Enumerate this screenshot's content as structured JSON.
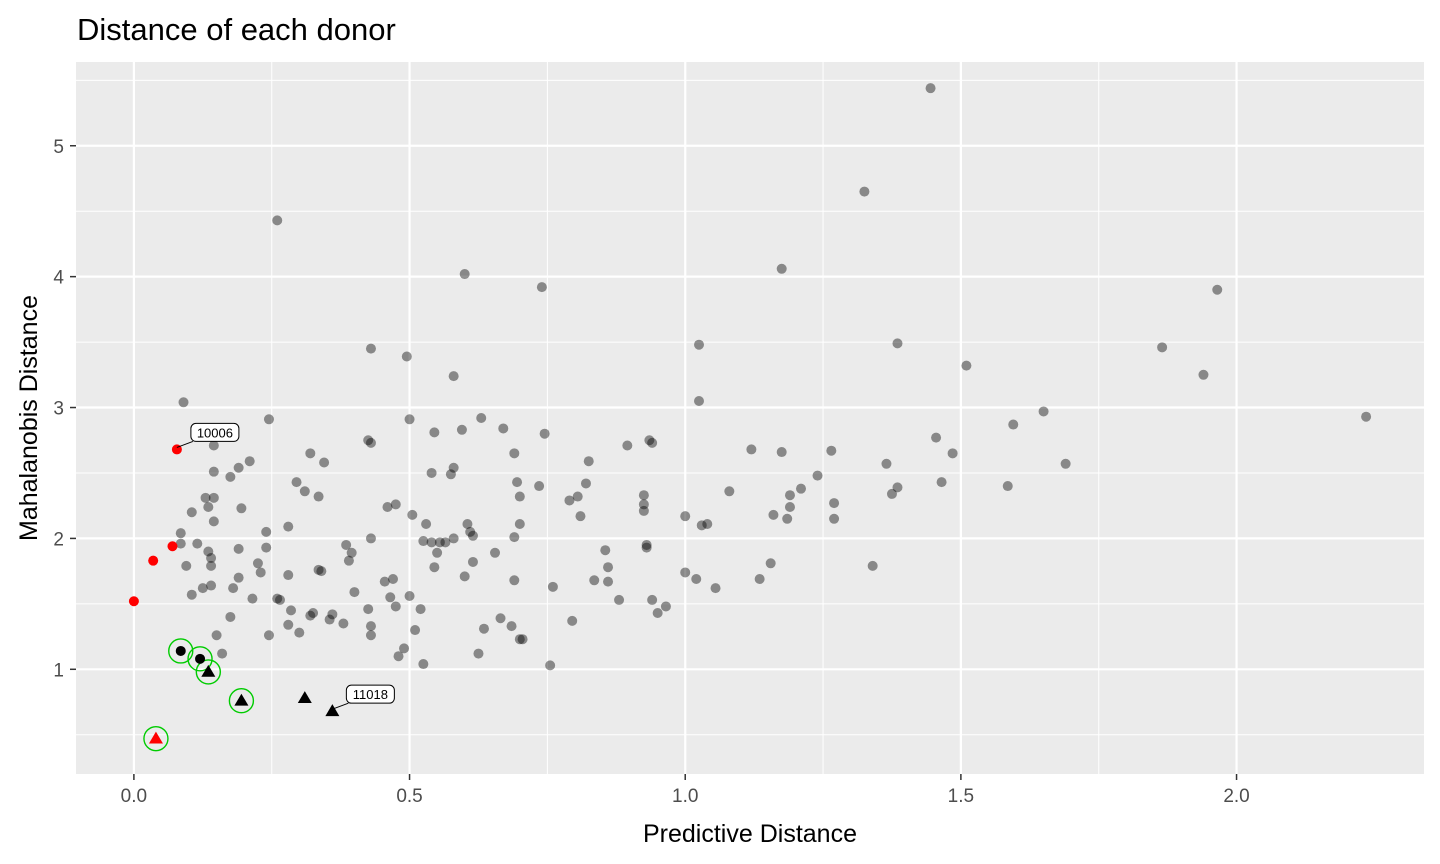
{
  "chart_data": {
    "type": "scatter",
    "title": "Distance of each donor",
    "xlabel": "Predictive Distance",
    "ylabel": "Mahalanobis Distance",
    "xlim": [
      -0.105,
      2.34
    ],
    "ylim": [
      0.2,
      5.64
    ],
    "x_ticks": [
      0.0,
      0.5,
      1.0,
      1.5,
      2.0
    ],
    "x_tick_labels": [
      "0.0",
      "0.5",
      "1.0",
      "1.5",
      "2.0"
    ],
    "y_ticks": [
      1,
      2,
      3,
      4,
      5
    ],
    "y_tick_labels": [
      "1",
      "2",
      "3",
      "4",
      "5"
    ],
    "grid": true,
    "background": "#EBEBEB",
    "colors": {
      "donor": "#7a7a7a",
      "highlight": "#FF0000",
      "selected": "#000000",
      "ring": "#00CC00"
    },
    "donors": [
      [
        1.445,
        5.44
      ],
      [
        1.325,
        4.65
      ],
      [
        0.26,
        4.43
      ],
      [
        1.175,
        4.06
      ],
      [
        0.6,
        4.02
      ],
      [
        0.74,
        3.92
      ],
      [
        1.965,
        3.9
      ],
      [
        1.385,
        3.49
      ],
      [
        1.025,
        3.48
      ],
      [
        0.43,
        3.45
      ],
      [
        1.865,
        3.46
      ],
      [
        0.495,
        3.39
      ],
      [
        1.51,
        3.32
      ],
      [
        1.94,
        3.25
      ],
      [
        0.58,
        3.24
      ],
      [
        1.025,
        3.05
      ],
      [
        0.09,
        3.04
      ],
      [
        2.235,
        2.93
      ],
      [
        0.245,
        2.91
      ],
      [
        0.5,
        2.91
      ],
      [
        0.63,
        2.92
      ],
      [
        1.65,
        2.97
      ],
      [
        1.595,
        2.87
      ],
      [
        0.67,
        2.84
      ],
      [
        0.545,
        2.81
      ],
      [
        0.595,
        2.83
      ],
      [
        0.745,
        2.8
      ],
      [
        0.425,
        2.75
      ],
      [
        0.43,
        2.73
      ],
      [
        0.935,
        2.75
      ],
      [
        0.94,
        2.73
      ],
      [
        1.455,
        2.77
      ],
      [
        0.145,
        2.71
      ],
      [
        0.895,
        2.71
      ],
      [
        1.12,
        2.68
      ],
      [
        1.485,
        2.65
      ],
      [
        1.175,
        2.66
      ],
      [
        1.265,
        2.67
      ],
      [
        0.32,
        2.65
      ],
      [
        0.69,
        2.65
      ],
      [
        0.345,
        2.58
      ],
      [
        0.21,
        2.59
      ],
      [
        0.825,
        2.59
      ],
      [
        1.365,
        2.57
      ],
      [
        1.69,
        2.57
      ],
      [
        0.58,
        2.54
      ],
      [
        0.19,
        2.54
      ],
      [
        0.145,
        2.51
      ],
      [
        0.54,
        2.5
      ],
      [
        0.575,
        2.49
      ],
      [
        1.24,
        2.48
      ],
      [
        0.175,
        2.47
      ],
      [
        0.295,
        2.43
      ],
      [
        0.695,
        2.43
      ],
      [
        0.735,
        2.4
      ],
      [
        1.465,
        2.43
      ],
      [
        0.82,
        2.42
      ],
      [
        1.385,
        2.39
      ],
      [
        1.585,
        2.4
      ],
      [
        1.21,
        2.38
      ],
      [
        0.31,
        2.36
      ],
      [
        0.145,
        2.31
      ],
      [
        1.08,
        2.36
      ],
      [
        1.375,
        2.34
      ],
      [
        0.335,
        2.32
      ],
      [
        0.7,
        2.32
      ],
      [
        0.925,
        2.33
      ],
      [
        0.805,
        2.32
      ],
      [
        1.19,
        2.33
      ],
      [
        0.13,
        2.31
      ],
      [
        0.79,
        2.29
      ],
      [
        0.925,
        2.26
      ],
      [
        1.27,
        2.27
      ],
      [
        0.135,
        2.24
      ],
      [
        0.475,
        2.26
      ],
      [
        0.46,
        2.24
      ],
      [
        1.19,
        2.24
      ],
      [
        0.195,
        2.23
      ],
      [
        0.925,
        2.21
      ],
      [
        1.16,
        2.18
      ],
      [
        0.105,
        2.2
      ],
      [
        0.505,
        2.18
      ],
      [
        0.81,
        2.17
      ],
      [
        1.0,
        2.17
      ],
      [
        1.185,
        2.15
      ],
      [
        1.27,
        2.15
      ],
      [
        0.145,
        2.13
      ],
      [
        0.53,
        2.11
      ],
      [
        0.605,
        2.11
      ],
      [
        0.7,
        2.11
      ],
      [
        1.04,
        2.11
      ],
      [
        1.03,
        2.1
      ],
      [
        0.28,
        2.09
      ],
      [
        0.61,
        2.05
      ],
      [
        0.085,
        2.04
      ],
      [
        0.24,
        2.05
      ],
      [
        0.615,
        2.02
      ],
      [
        0.69,
        2.01
      ],
      [
        0.43,
        2.0
      ],
      [
        0.58,
        2.0
      ],
      [
        0.525,
        1.98
      ],
      [
        0.54,
        1.97
      ],
      [
        0.555,
        1.97
      ],
      [
        0.565,
        1.97
      ],
      [
        0.085,
        1.96
      ],
      [
        0.115,
        1.96
      ],
      [
        0.93,
        1.95
      ],
      [
        0.385,
        1.95
      ],
      [
        0.93,
        1.93
      ],
      [
        0.24,
        1.93
      ],
      [
        0.19,
        1.92
      ],
      [
        0.855,
        1.91
      ],
      [
        0.135,
        1.9
      ],
      [
        0.395,
        1.89
      ],
      [
        0.55,
        1.89
      ],
      [
        0.655,
        1.89
      ],
      [
        0.14,
        1.85
      ],
      [
        0.39,
        1.83
      ],
      [
        0.615,
        1.82
      ],
      [
        0.225,
        1.81
      ],
      [
        1.155,
        1.81
      ],
      [
        0.095,
        1.79
      ],
      [
        0.14,
        1.79
      ],
      [
        1.34,
        1.79
      ],
      [
        0.545,
        1.78
      ],
      [
        0.86,
        1.78
      ],
      [
        0.335,
        1.76
      ],
      [
        0.34,
        1.75
      ],
      [
        1.0,
        1.74
      ],
      [
        0.23,
        1.74
      ],
      [
        0.28,
        1.72
      ],
      [
        0.6,
        1.71
      ],
      [
        0.19,
        1.7
      ],
      [
        1.02,
        1.69
      ],
      [
        0.47,
        1.69
      ],
      [
        0.69,
        1.68
      ],
      [
        1.135,
        1.69
      ],
      [
        0.455,
        1.67
      ],
      [
        0.835,
        1.68
      ],
      [
        0.86,
        1.67
      ],
      [
        0.14,
        1.64
      ],
      [
        0.125,
        1.62
      ],
      [
        0.76,
        1.63
      ],
      [
        1.055,
        1.62
      ],
      [
        0.18,
        1.62
      ],
      [
        0.4,
        1.59
      ],
      [
        0.105,
        1.57
      ],
      [
        0.5,
        1.56
      ],
      [
        0.465,
        1.55
      ],
      [
        0.88,
        1.53
      ],
      [
        0.215,
        1.54
      ],
      [
        0.26,
        1.54
      ],
      [
        0.94,
        1.53
      ],
      [
        0.265,
        1.53
      ],
      [
        0.475,
        1.48
      ],
      [
        0.965,
        1.48
      ],
      [
        0.52,
        1.46
      ],
      [
        0.425,
        1.46
      ],
      [
        0.285,
        1.45
      ],
      [
        0.95,
        1.43
      ],
      [
        0.325,
        1.43
      ],
      [
        0.32,
        1.41
      ],
      [
        0.175,
        1.4
      ],
      [
        0.36,
        1.42
      ],
      [
        0.665,
        1.39
      ],
      [
        0.355,
        1.38
      ],
      [
        0.38,
        1.35
      ],
      [
        0.28,
        1.34
      ],
      [
        0.43,
        1.33
      ],
      [
        0.685,
        1.33
      ],
      [
        0.635,
        1.31
      ],
      [
        0.795,
        1.37
      ],
      [
        0.51,
        1.3
      ],
      [
        0.3,
        1.28
      ],
      [
        0.15,
        1.26
      ],
      [
        0.245,
        1.26
      ],
      [
        0.43,
        1.26
      ],
      [
        0.7,
        1.23
      ],
      [
        0.705,
        1.23
      ],
      [
        0.49,
        1.16
      ],
      [
        0.625,
        1.12
      ],
      [
        0.16,
        1.12
      ],
      [
        0.48,
        1.1
      ],
      [
        0.525,
        1.04
      ],
      [
        0.755,
        1.03
      ]
    ],
    "highlighted_circles": [
      [
        0.0,
        1.52
      ],
      [
        0.035,
        1.83
      ],
      [
        0.07,
        1.94
      ],
      [
        0.078,
        2.68
      ]
    ],
    "highlighted_triangles": [
      [
        0.04,
        0.47
      ]
    ],
    "selected_circles": [
      [
        0.085,
        1.14
      ],
      [
        0.12,
        1.08
      ]
    ],
    "selected_triangles": [
      [
        0.135,
        0.98
      ],
      [
        0.195,
        0.76
      ],
      [
        0.31,
        0.78
      ],
      [
        0.36,
        0.68
      ]
    ],
    "ringed": [
      [
        0.085,
        1.14
      ],
      [
        0.12,
        1.08
      ],
      [
        0.135,
        0.98
      ],
      [
        0.195,
        0.76
      ],
      [
        0.04,
        0.47
      ]
    ],
    "labels": [
      {
        "text": "10006",
        "x": 0.078,
        "y": 2.68
      },
      {
        "text": "11018",
        "x": 0.36,
        "y": 0.68
      }
    ]
  }
}
